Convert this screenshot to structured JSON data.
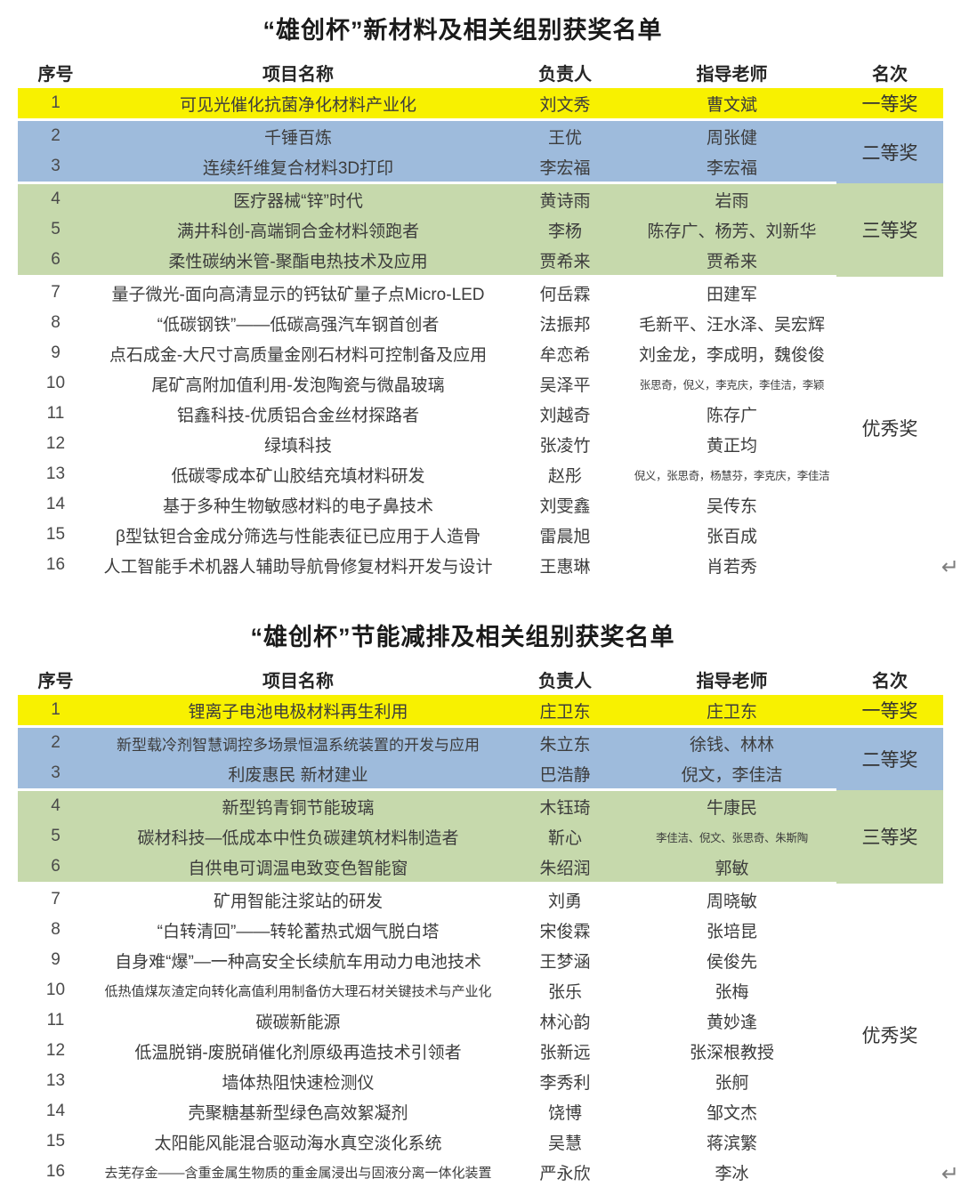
{
  "colors": {
    "first_prize_bg": "#f8f100",
    "second_prize_bg": "#9ebbdc",
    "third_prize_bg": "#c6d9ac",
    "text": "#3c3c3c"
  },
  "tables": [
    {
      "title": "“雄创杯”新材料及相关组别获奖名单",
      "headers": [
        "序号",
        "项目名称",
        "负责人",
        "指导老师",
        "名次"
      ],
      "return_mark": "↵",
      "rows": [
        {
          "no": "1",
          "project": "可见光催化抗菌净化材料产业化",
          "leader": "刘文秀",
          "advisor": "曹文斌",
          "tier": "first",
          "tier_end": true,
          "rank": "一等奖",
          "rank_span": 1
        },
        {
          "no": "2",
          "project": "千锤百炼",
          "leader": "王优",
          "advisor": "周张健",
          "tier": "second",
          "rank": "二等奖",
          "rank_span": 2
        },
        {
          "no": "3",
          "project": "连续纤维复合材料3D打印",
          "leader": "李宏福",
          "advisor": "李宏福",
          "tier": "second",
          "tier_end": true
        },
        {
          "no": "4",
          "project": "医疗器械“锌”时代",
          "leader": "黄诗雨",
          "advisor": "岩雨",
          "tier": "third",
          "rank": "三等奖",
          "rank_span": 3
        },
        {
          "no": "5",
          "project": "满井科创-高端铜合金材料领跑者",
          "leader": "李杨",
          "advisor": "陈存广、杨芳、刘新华",
          "tier": "third"
        },
        {
          "no": "6",
          "project": "柔性碳纳米管-聚酯电热技术及应用",
          "leader": "贾希来",
          "advisor": "贾希来",
          "tier": "third",
          "tier_end": true
        },
        {
          "no": "7",
          "project": "量子微光-面向高清显示的钙钛矿量子点Micro-LED",
          "leader": "何岳霖",
          "advisor": "田建军",
          "rank": "优秀奖",
          "rank_span": 10
        },
        {
          "no": "8",
          "project": "“低碳钢铁”——低碳高强汽车钢首创者",
          "leader": "法振邦",
          "advisor": "毛新平、汪水泽、吴宏辉"
        },
        {
          "no": "9",
          "project": "点石成金-大尺寸高质量金刚石材料可控制备及应用",
          "leader": "牟恋希",
          "advisor": "刘金龙，李成明，魏俊俊"
        },
        {
          "no": "10",
          "project": "尾矿高附加值利用-发泡陶瓷与微晶玻璃",
          "leader": "吴泽平",
          "advisor": "张思奇，倪义，李克庆，李佳洁，李颖",
          "asize": "small"
        },
        {
          "no": "11",
          "project": "铝鑫科技-优质铝合金丝材探路者",
          "leader": "刘越奇",
          "advisor": "陈存广"
        },
        {
          "no": "12",
          "project": "绿填科技",
          "leader": "张凌竹",
          "advisor": "黄正均"
        },
        {
          "no": "13",
          "project": "低碳零成本矿山胶结充填材料研发",
          "leader": "赵彤",
          "advisor": "倪义，张思奇，杨慧芬，李克庆，李佳洁",
          "asize": "small"
        },
        {
          "no": "14",
          "project": "基于多种生物敏感材料的电子鼻技术",
          "leader": "刘雯鑫",
          "advisor": "吴传东"
        },
        {
          "no": "15",
          "project": "β型钛钽合金成分筛选与性能表征已应用于人造骨",
          "leader": "雷晨旭",
          "advisor": "张百成"
        },
        {
          "no": "16",
          "project": "人工智能手术机器人辅助导航骨修复材料开发与设计",
          "leader": "王惠琳",
          "advisor": "肖若秀"
        }
      ]
    },
    {
      "title": "“雄创杯”节能减排及相关组别获奖名单",
      "headers": [
        "序号",
        "项目名称",
        "负责人",
        "指导老师",
        "名次"
      ],
      "return_mark": "↵",
      "rows": [
        {
          "no": "1",
          "project": "锂离子电池电极材料再生利用",
          "leader": "庄卫东",
          "advisor": "庄卫东",
          "tier": "first",
          "tier_end": true,
          "rank": "一等奖",
          "rank_span": 1
        },
        {
          "no": "2",
          "project": "新型载冷剂智慧调控多场景恒温系统装置的开发与应用",
          "leader": "朱立东",
          "advisor": "徐钱、林林",
          "tier": "second",
          "psize": "medium",
          "rank": "二等奖",
          "rank_span": 2
        },
        {
          "no": "3",
          "project": "利废惠民 新材建业",
          "leader": "巴浩静",
          "advisor": "倪文，李佳洁",
          "tier": "second",
          "tier_end": true
        },
        {
          "no": "4",
          "project": "新型钨青铜节能玻璃",
          "leader": "木钰琦",
          "advisor": "牛康民",
          "tier": "third",
          "rank": "三等奖",
          "rank_span": 3
        },
        {
          "no": "5",
          "project": "碳材科技—低成本中性负碳建筑材料制造者",
          "leader": "靳心",
          "advisor": "李佳洁、倪文、张思奇、朱斯陶",
          "tier": "third",
          "asize": "small"
        },
        {
          "no": "6",
          "project": "自供电可调温电致变色智能窗",
          "leader": "朱绍润",
          "advisor": "郭敏",
          "tier": "third",
          "tier_end": true
        },
        {
          "no": "7",
          "project": "矿用智能注浆站的研发",
          "leader": "刘勇",
          "advisor": "周晓敏",
          "rank": "优秀奖",
          "rank_span": 10
        },
        {
          "no": "8",
          "project": "“白转清回”——转轮蓄热式烟气脱白塔",
          "leader": "宋俊霖",
          "advisor": "张培昆"
        },
        {
          "no": "9",
          "project": "自身难“爆”—一种高安全长续航车用动力电池技术",
          "leader": "王梦涵",
          "advisor": "侯俊先"
        },
        {
          "no": "10",
          "project": "低热值煤灰渣定向转化高值利用制备仿大理石材关键技术与产业化",
          "leader": "张乐",
          "advisor": "张梅",
          "psize": "msmall"
        },
        {
          "no": "11",
          "project": "碳碳新能源",
          "leader": "林沁韵",
          "advisor": "黄妙逢"
        },
        {
          "no": "12",
          "project": "低温脱销-废脱硝催化剂原级再造技术引领者",
          "leader": "张新远",
          "advisor": "张深根教授"
        },
        {
          "no": "13",
          "project": "墙体热阻快速检测仪",
          "leader": "李秀利",
          "advisor": "张舸"
        },
        {
          "no": "14",
          "project": "壳聚糖基新型绿色高效絮凝剂",
          "leader": "饶博",
          "advisor": "邹文杰"
        },
        {
          "no": "15",
          "project": "太阳能风能混合驱动海水真空淡化系统",
          "leader": "吴慧",
          "advisor": "蒋滨繁"
        },
        {
          "no": "16",
          "project": "去芜存金——含重金属生物质的重金属浸出与固液分离一体化装置",
          "leader": "严永欣",
          "advisor": "李冰",
          "psize": "msmall"
        }
      ]
    }
  ]
}
